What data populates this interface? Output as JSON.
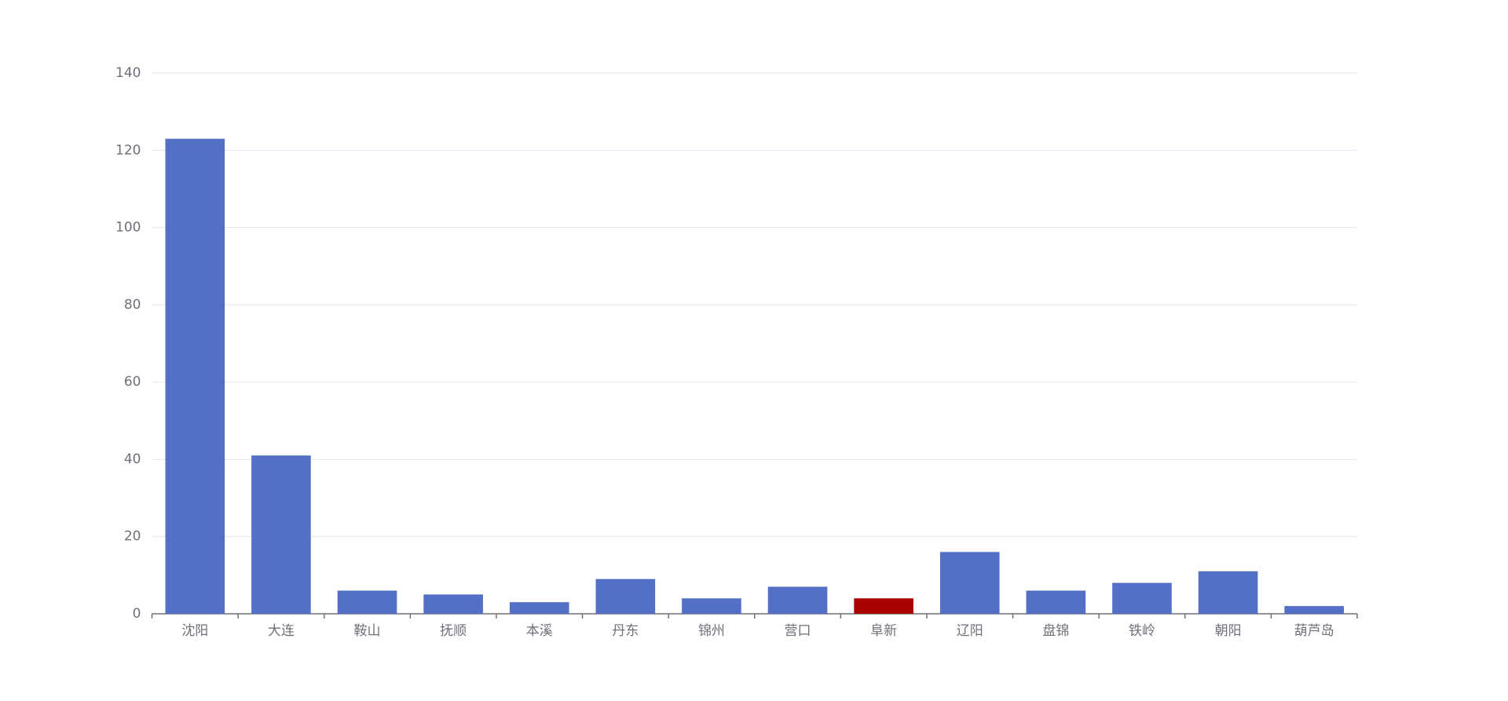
{
  "chart_data": {
    "type": "bar",
    "categories": [
      "沈阳",
      "大连",
      "鞍山",
      "抚顺",
      "本溪",
      "丹东",
      "锦州",
      "营口",
      "阜新",
      "辽阳",
      "盘锦",
      "铁岭",
      "朝阳",
      "葫芦岛"
    ],
    "values": [
      123,
      41,
      6,
      5,
      3,
      9,
      4,
      7,
      4,
      16,
      6,
      8,
      11,
      2
    ],
    "colors": [
      "#5470c6",
      "#5470c6",
      "#5470c6",
      "#5470c6",
      "#5470c6",
      "#5470c6",
      "#5470c6",
      "#5470c6",
      "#a90000",
      "#5470c6",
      "#5470c6",
      "#5470c6",
      "#5470c6",
      "#5470c6"
    ],
    "ylim": [
      0,
      140
    ],
    "yticks": [
      0,
      20,
      40,
      60,
      80,
      100,
      120,
      140
    ],
    "grid": true
  }
}
